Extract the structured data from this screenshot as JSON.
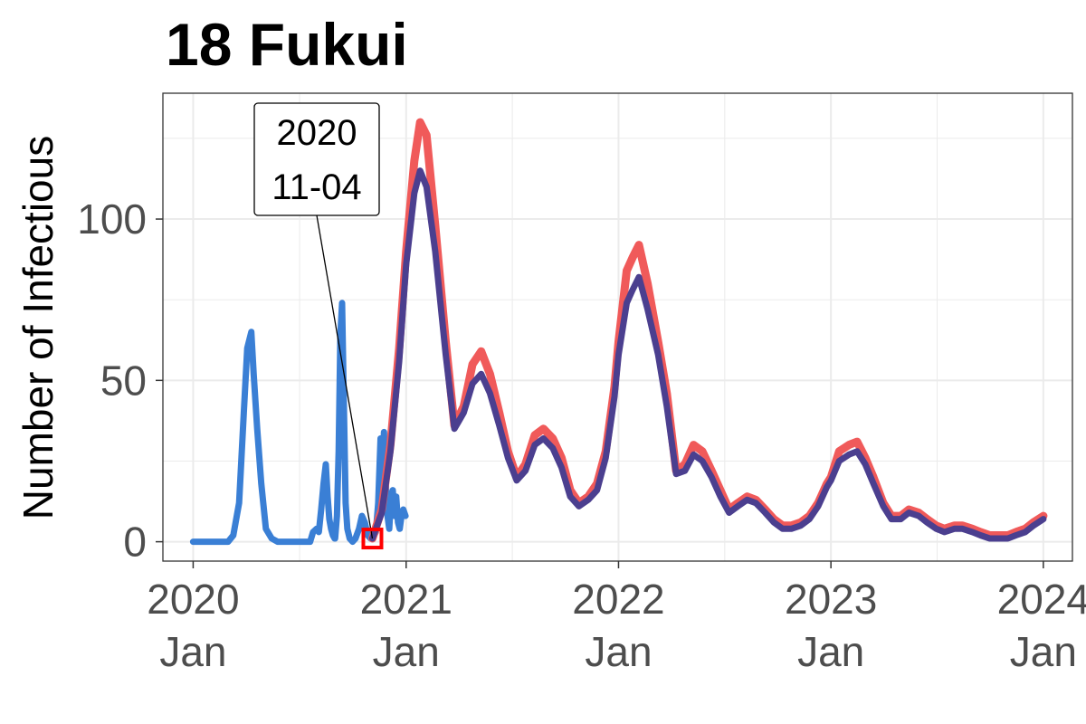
{
  "chart_data": {
    "type": "line",
    "title": "18 Fukui",
    "ylabel": "Number of Infectious",
    "xlabel": "",
    "x_ticks": [
      {
        "date": "2020-01-01",
        "year": "2020",
        "month": "Jan"
      },
      {
        "date": "2021-01-01",
        "year": "2021",
        "month": "Jan"
      },
      {
        "date": "2022-01-01",
        "year": "2022",
        "month": "Jan"
      },
      {
        "date": "2023-01-01",
        "year": "2023",
        "month": "Jan"
      },
      {
        "date": "2024-01-01",
        "year": "2024",
        "month": "Jan"
      }
    ],
    "y_ticks": [
      0,
      50,
      100
    ],
    "xlim": [
      "2019-11-10",
      "2024-02-20"
    ],
    "ylim": [
      -6,
      139
    ],
    "grid": true,
    "legend": "none",
    "annotation": {
      "date": "2020-11-04",
      "value": 1,
      "line1": "2020",
      "line2": "11-04"
    },
    "colors": {
      "observed": "#3a7fd5",
      "upper": "#f05a5a",
      "central": "#4b3f8f",
      "marker": "#ff0000",
      "grid": "#ebebeb",
      "panel_border": "#333333"
    },
    "series": [
      {
        "key": "observed",
        "x": [
          "2020-01-01",
          "2020-03-01",
          "2020-03-10",
          "2020-03-20",
          "2020-03-28",
          "2020-04-03",
          "2020-04-10",
          "2020-04-14",
          "2020-04-20",
          "2020-04-27",
          "2020-05-05",
          "2020-05-15",
          "2020-05-25",
          "2020-06-10",
          "2020-07-01",
          "2020-07-20",
          "2020-07-25",
          "2020-07-31",
          "2020-08-04",
          "2020-08-08",
          "2020-08-12",
          "2020-08-16",
          "2020-08-19",
          "2020-08-22",
          "2020-08-25",
          "2020-08-28",
          "2020-08-31",
          "2020-09-01",
          "2020-09-04",
          "2020-09-07",
          "2020-09-10",
          "2020-09-13",
          "2020-09-16",
          "2020-09-19",
          "2020-09-22",
          "2020-09-26",
          "2020-10-01",
          "2020-10-06",
          "2020-10-12",
          "2020-10-17",
          "2020-10-22",
          "2020-10-27",
          "2020-11-01",
          "2020-11-04",
          "2020-11-10",
          "2020-11-14",
          "2020-11-18",
          "2020-11-21",
          "2020-11-24",
          "2020-11-27",
          "2020-11-30",
          "2020-12-03",
          "2020-12-06",
          "2020-12-09",
          "2020-12-12",
          "2020-12-15",
          "2020-12-18",
          "2020-12-21",
          "2020-12-24",
          "2020-12-27",
          "2020-12-31"
        ],
        "y": [
          0,
          0,
          2,
          12,
          40,
          60,
          65,
          52,
          35,
          18,
          4,
          1,
          0,
          0,
          0,
          0,
          3,
          4,
          3,
          10,
          18,
          24,
          14,
          7,
          4,
          2,
          1,
          1,
          8,
          28,
          64,
          74,
          42,
          12,
          4,
          1,
          0,
          1,
          4,
          8,
          6,
          2,
          1,
          1,
          3,
          12,
          32,
          20,
          34,
          18,
          8,
          4,
          14,
          16,
          8,
          14,
          6,
          4,
          8,
          10,
          8
        ]
      },
      {
        "key": "upper",
        "x": [
          "2020-11-04",
          "2020-11-20",
          "2020-12-05",
          "2020-12-20",
          "2021-01-01",
          "2021-01-15",
          "2021-01-25",
          "2021-02-05",
          "2021-02-20",
          "2021-03-10",
          "2021-03-25",
          "2021-04-10",
          "2021-04-25",
          "2021-05-10",
          "2021-05-25",
          "2021-06-10",
          "2021-06-25",
          "2021-07-10",
          "2021-07-25",
          "2021-08-10",
          "2021-08-25",
          "2021-09-10",
          "2021-09-25",
          "2021-10-10",
          "2021-10-25",
          "2021-11-10",
          "2021-11-25",
          "2021-12-10",
          "2021-12-25",
          "2022-01-01",
          "2022-01-15",
          "2022-01-25",
          "2022-02-05",
          "2022-02-20",
          "2022-03-10",
          "2022-03-25",
          "2022-04-10",
          "2022-04-25",
          "2022-05-10",
          "2022-05-25",
          "2022-06-10",
          "2022-06-25",
          "2022-07-10",
          "2022-07-25",
          "2022-08-10",
          "2022-08-25",
          "2022-09-10",
          "2022-09-25",
          "2022-10-10",
          "2022-10-25",
          "2022-11-10",
          "2022-11-25",
          "2022-12-10",
          "2022-12-25",
          "2023-01-01",
          "2023-01-15",
          "2023-02-01",
          "2023-02-15",
          "2023-03-01",
          "2023-03-15",
          "2023-04-01",
          "2023-04-15",
          "2023-05-01",
          "2023-05-15",
          "2023-06-01",
          "2023-06-15",
          "2023-07-01",
          "2023-07-15",
          "2023-08-01",
          "2023-08-15",
          "2023-09-01",
          "2023-09-15",
          "2023-10-01",
          "2023-10-15",
          "2023-11-01",
          "2023-11-15",
          "2023-12-01",
          "2023-12-15",
          "2024-01-01"
        ],
        "y": [
          1,
          10,
          30,
          60,
          90,
          118,
          130,
          126,
          98,
          62,
          36,
          42,
          55,
          59,
          52,
          40,
          28,
          20,
          24,
          33,
          35,
          32,
          26,
          16,
          12,
          14,
          18,
          28,
          48,
          62,
          84,
          88,
          92,
          80,
          62,
          46,
          22,
          24,
          30,
          28,
          22,
          16,
          10,
          12,
          14,
          13,
          10,
          7,
          5,
          5,
          6,
          8,
          12,
          18,
          20,
          28,
          30,
          31,
          26,
          20,
          12,
          8,
          8,
          10,
          9,
          7,
          5,
          4,
          5,
          5,
          4,
          3,
          2,
          2,
          2,
          3,
          4,
          6,
          8
        ]
      },
      {
        "key": "central",
        "x": [
          "2020-11-04",
          "2020-11-20",
          "2020-12-05",
          "2020-12-20",
          "2021-01-01",
          "2021-01-15",
          "2021-01-25",
          "2021-02-05",
          "2021-02-20",
          "2021-03-10",
          "2021-03-25",
          "2021-04-10",
          "2021-04-25",
          "2021-05-10",
          "2021-05-25",
          "2021-06-10",
          "2021-06-25",
          "2021-07-10",
          "2021-07-25",
          "2021-08-10",
          "2021-08-25",
          "2021-09-10",
          "2021-09-25",
          "2021-10-10",
          "2021-10-25",
          "2021-11-10",
          "2021-11-25",
          "2021-12-10",
          "2021-12-25",
          "2022-01-01",
          "2022-01-15",
          "2022-01-25",
          "2022-02-05",
          "2022-02-20",
          "2022-03-10",
          "2022-03-25",
          "2022-04-10",
          "2022-04-25",
          "2022-05-10",
          "2022-05-25",
          "2022-06-10",
          "2022-06-25",
          "2022-07-10",
          "2022-07-25",
          "2022-08-10",
          "2022-08-25",
          "2022-09-10",
          "2022-09-25",
          "2022-10-10",
          "2022-10-25",
          "2022-11-10",
          "2022-11-25",
          "2022-12-10",
          "2022-12-25",
          "2023-01-01",
          "2023-01-15",
          "2023-02-01",
          "2023-02-15",
          "2023-03-01",
          "2023-03-15",
          "2023-04-01",
          "2023-04-15",
          "2023-05-01",
          "2023-05-15",
          "2023-06-01",
          "2023-06-15",
          "2023-07-01",
          "2023-07-15",
          "2023-08-01",
          "2023-08-15",
          "2023-09-01",
          "2023-09-15",
          "2023-10-01",
          "2023-10-15",
          "2023-11-01",
          "2023-11-15",
          "2023-12-01",
          "2023-12-15",
          "2024-01-01"
        ],
        "y": [
          1,
          9,
          28,
          56,
          86,
          108,
          115,
          110,
          90,
          58,
          35,
          40,
          49,
          52,
          46,
          36,
          26,
          19,
          22,
          30,
          32,
          29,
          23,
          14,
          11,
          13,
          16,
          26,
          45,
          58,
          74,
          78,
          82,
          72,
          58,
          42,
          21,
          22,
          27,
          25,
          20,
          14,
          9,
          11,
          13,
          12,
          9,
          6,
          4,
          4,
          5,
          7,
          11,
          17,
          19,
          25,
          27,
          28,
          24,
          18,
          11,
          7,
          7,
          9,
          8,
          6,
          4,
          3,
          4,
          4,
          3,
          2,
          1,
          1,
          1,
          2,
          3,
          5,
          7
        ]
      }
    ]
  }
}
